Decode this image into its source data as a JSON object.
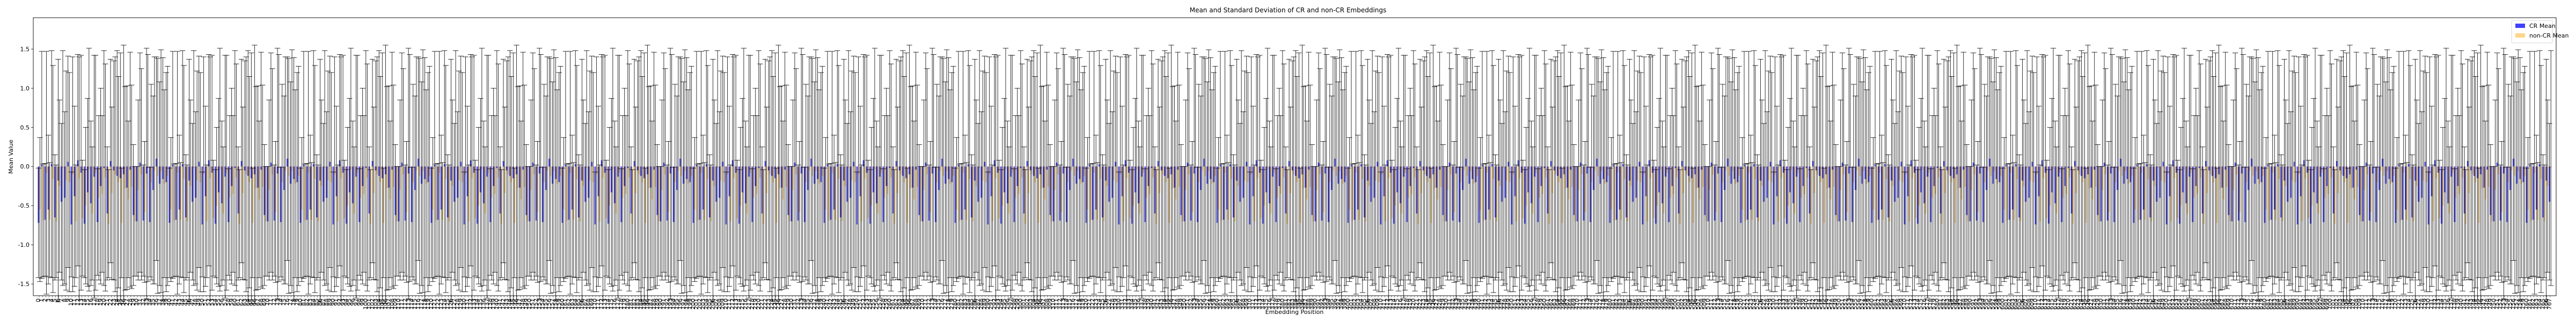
{
  "chart_data": {
    "type": "bar",
    "title": "Mean and Standard Deviation of CR and non-CR Embeddings",
    "xlabel": "Embedding Position",
    "ylabel": "Mean Value",
    "ylim": [
      -1.65,
      1.9
    ],
    "yticks": [
      "-1.5",
      "-1.0",
      "-0.5",
      "0.0",
      "0.5",
      "1.0",
      "1.5"
    ],
    "ytick_values": [
      -1.5,
      -1.0,
      -0.5,
      0.0,
      0.5,
      1.0,
      1.5
    ],
    "grid": false,
    "legend_position": "top-right",
    "num_positions": 768,
    "x_start": 0,
    "series": [
      {
        "name": "CR Mean",
        "color": "#0000ff",
        "alpha": 0.75,
        "error_color": "#000000",
        "pattern": [
          -0.72,
          -0.05,
          -0.18,
          -0.62,
          0.08,
          -0.3,
          -0.71,
          0.02,
          -0.12,
          -0.45,
          -0.7,
          -0.08,
          0.1,
          -0.25,
          -0.68,
          -0.15,
          -0.4,
          0.05,
          -0.73,
          -0.22,
          -0.02,
          -0.55,
          -0.1,
          0.06,
          -0.69,
          -0.33,
          -0.16,
          -0.6,
          0.03,
          -0.27,
          -0.74,
          -0.09,
          -0.47,
          -0.2,
          0.07,
          -0.65,
          -0.04,
          -0.38,
          -0.71,
          -0.13
        ],
        "std_pattern": [
          0.7,
          1.4,
          1.55,
          0.9,
          1.35,
          1.2,
          0.68,
          1.45,
          1.6,
          1.0,
          0.7,
          1.5,
          1.3,
          1.25,
          0.72,
          1.6,
          1.1,
          1.4,
          0.69,
          1.3,
          1.5,
          0.95,
          1.65,
          1.35,
          0.71,
          1.2,
          1.55,
          0.85,
          1.45,
          1.3,
          0.67,
          1.6,
          1.05,
          1.4,
          1.3,
          0.8,
          1.5,
          1.15,
          0.7,
          1.55
        ]
      },
      {
        "name": "non-CR Mean",
        "color": "#ffa500",
        "alpha": 0.45,
        "error_color": "#000000",
        "pattern": [
          -0.7,
          -0.2,
          -0.08,
          -0.55,
          -0.1,
          -0.25,
          -0.7,
          -0.15,
          -0.05,
          -0.4,
          -0.69,
          -0.2,
          -0.02,
          -0.3,
          -0.66,
          -0.12,
          -0.35,
          -0.08,
          -0.72,
          -0.18,
          -0.1,
          -0.5,
          -0.06,
          -0.14,
          -0.68,
          -0.28,
          -0.2,
          -0.58,
          -0.04,
          -0.22,
          -0.73,
          -0.16,
          -0.42,
          -0.1,
          -0.02,
          -0.6,
          -0.12,
          -0.34,
          -0.7,
          -0.26
        ],
        "std_pattern": [
          0.72,
          1.25,
          1.5,
          0.92,
          1.5,
          1.1,
          0.7,
          1.55,
          1.45,
          1.05,
          0.72,
          1.35,
          1.5,
          1.15,
          0.74,
          1.5,
          1.0,
          1.55,
          0.7,
          1.4,
          1.35,
          1.0,
          1.55,
          1.45,
          0.73,
          1.3,
          1.4,
          0.9,
          1.55,
          1.2,
          0.69,
          1.45,
          1.0,
          1.5,
          1.45,
          0.85,
          1.4,
          1.1,
          0.72,
          1.3
        ]
      }
    ]
  }
}
